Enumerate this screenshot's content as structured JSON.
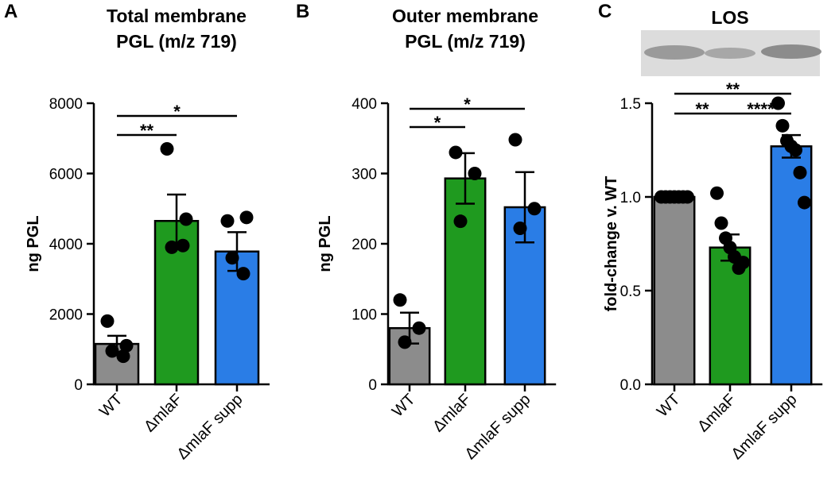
{
  "chart_data": [
    {
      "type": "bar",
      "panel": "A",
      "title": [
        "Total membrane",
        "PGL (m/z 719)"
      ],
      "ylabel": "ng PGL",
      "categories": [
        "WT",
        "ΔmlaF",
        "ΔmlaF supp"
      ],
      "colors": [
        "#8c8c8c",
        "#1f9a1f",
        "#2a7de6"
      ],
      "values": [
        1150,
        4650,
        3780
      ],
      "errors": [
        230,
        750,
        550
      ],
      "points": [
        [
          1800,
          1100,
          950,
          800
        ],
        [
          6700,
          4700,
          3900,
          3950
        ],
        [
          4650,
          4750,
          3600,
          3150
        ]
      ],
      "ylim": [
        0,
        8000
      ],
      "yticks": [
        0,
        2000,
        4000,
        6000,
        8000
      ],
      "significance": [
        {
          "between": [
            "WT",
            "ΔmlaF"
          ],
          "label": "**"
        },
        {
          "between": [
            "WT",
            "ΔmlaF supp"
          ],
          "label": "*"
        }
      ]
    },
    {
      "type": "bar",
      "panel": "B",
      "title": [
        "Outer membrane",
        "PGL (m/z 719)"
      ],
      "ylabel": "ng PGL",
      "categories": [
        "WT",
        "ΔmlaF",
        "ΔmlaF supp"
      ],
      "colors": [
        "#8c8c8c",
        "#1f9a1f",
        "#2a7de6"
      ],
      "values": [
        80,
        293,
        252
      ],
      "errors": [
        22,
        36,
        50
      ],
      "points": [
        [
          120,
          80,
          60
        ],
        [
          330,
          300,
          232
        ],
        [
          348,
          250,
          222
        ]
      ],
      "ylim": [
        0,
        400
      ],
      "yticks": [
        0,
        100,
        200,
        300,
        400
      ],
      "significance": [
        {
          "between": [
            "WT",
            "ΔmlaF"
          ],
          "label": "*"
        },
        {
          "between": [
            "WT",
            "ΔmlaF supp"
          ],
          "label": "*"
        }
      ]
    },
    {
      "type": "bar",
      "panel": "C",
      "title": [
        "LOS"
      ],
      "ylabel": "fold-change v. WT",
      "categories": [
        "WT",
        "ΔmlaF",
        "ΔmlaF supp"
      ],
      "colors": [
        "#8c8c8c",
        "#1f9a1f",
        "#2a7de6"
      ],
      "values": [
        1.0,
        0.73,
        1.27
      ],
      "errors": [
        0,
        0.07,
        0.06
      ],
      "points": [
        [
          1,
          1,
          1,
          1,
          1,
          1,
          1
        ],
        [
          1.02,
          0.86,
          0.78,
          0.73,
          0.68,
          0.62,
          0.65
        ],
        [
          1.5,
          1.38,
          1.3,
          1.27,
          1.25,
          1.13,
          0.97
        ]
      ],
      "ylim": [
        0,
        1.5
      ],
      "yticks": [
        {
          "value": 0,
          "label": "0.0"
        },
        0.5,
        {
          "value": 1,
          "label": "1.0"
        },
        1.5
      ],
      "significance": [
        {
          "between": [
            "WT",
            "ΔmlaF"
          ],
          "label": "**"
        },
        {
          "between": [
            "ΔmlaF",
            "ΔmlaF supp"
          ],
          "label": "****"
        },
        {
          "between": [
            "WT",
            "ΔmlaF supp"
          ],
          "label": "**"
        }
      ]
    }
  ]
}
